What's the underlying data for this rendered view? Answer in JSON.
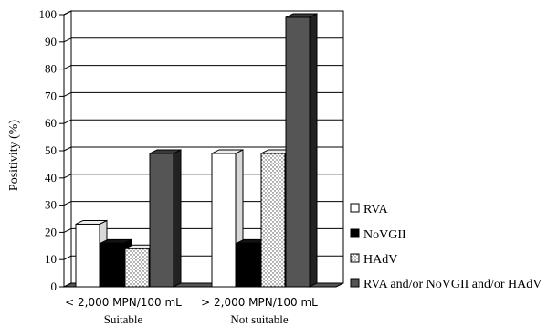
{
  "chart_data": {
    "type": "bar",
    "ylabel": "Positivity (%)",
    "ylim": [
      0,
      100
    ],
    "yticks": [
      0,
      10,
      20,
      30,
      40,
      50,
      60,
      70,
      80,
      90,
      100
    ],
    "categories": [
      "< 2,000 MPN/100 mL",
      "> 2,000 MPN/100 mL"
    ],
    "category_sublabels": [
      "Suitable",
      "Not suitable"
    ],
    "series": [
      {
        "name": "RVA",
        "values": [
          23,
          49
        ],
        "color": "#ffffff",
        "pattern": "none"
      },
      {
        "name": "NoVGII",
        "values": [
          16,
          16
        ],
        "color": "#000000",
        "pattern": "none"
      },
      {
        "name": "HAdV",
        "values": [
          14,
          49
        ],
        "color": "#ffffff",
        "pattern": "dots"
      },
      {
        "name": "RVA and/or NoVGII and/or HAdV",
        "values": [
          49,
          99
        ],
        "color": "#555555",
        "pattern": "none"
      }
    ],
    "grid": true,
    "legend_position": "right",
    "style": "3d"
  }
}
